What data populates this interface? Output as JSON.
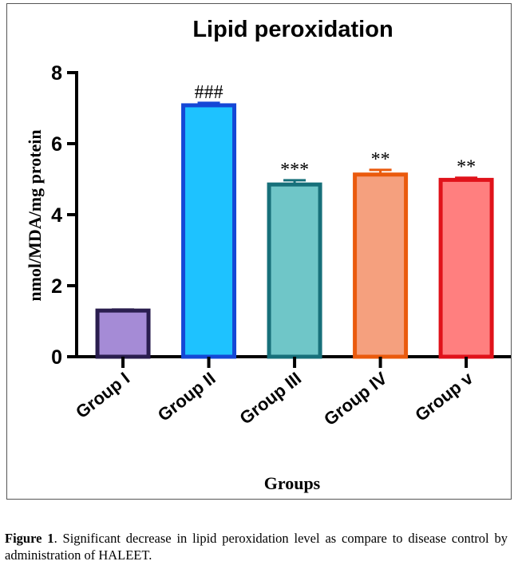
{
  "chart_data": {
    "type": "bar",
    "title": "Lipid peroxidation",
    "xlabel": "Groups",
    "ylabel": "nmol/MDA/mg protein",
    "ylim": [
      0,
      8
    ],
    "yticks": [
      "0",
      "2",
      "4",
      "6",
      "8"
    ],
    "categories": [
      "Group I",
      "Group II",
      "Group III",
      "Group IV",
      "Group v"
    ],
    "values": [
      1.3,
      7.08,
      4.85,
      5.13,
      4.98
    ],
    "errors": [
      0.03,
      0.07,
      0.12,
      0.13,
      0.06
    ],
    "annotations": [
      "",
      "###",
      "***",
      "**",
      "**"
    ],
    "fill_colors": [
      "#a58bd6",
      "#1ec2ff",
      "#6fc6c8",
      "#f5a07e",
      "#ff7f7f"
    ],
    "edge_colors": [
      "#2a1e4f",
      "#1447d6",
      "#17707a",
      "#ea5a0d",
      "#e0121a"
    ],
    "grid": false,
    "legend": "none"
  },
  "caption": {
    "label": "Figure 1",
    "text": ". Significant decrease in lipid peroxidation level as compare to disease control by administration of HALEET."
  }
}
